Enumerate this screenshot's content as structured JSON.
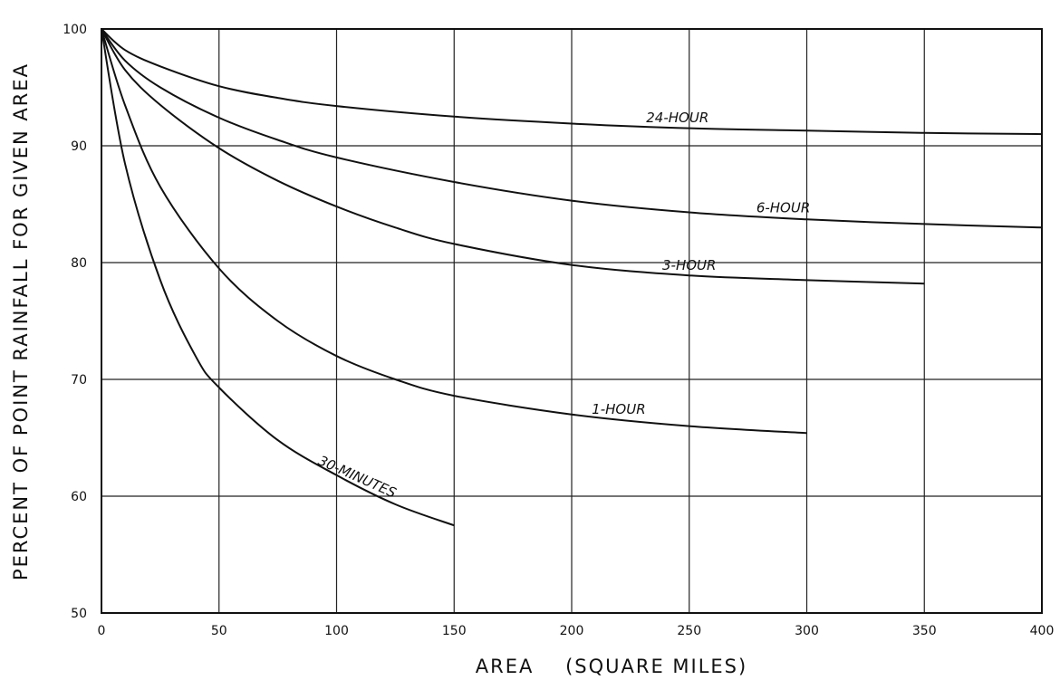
{
  "chart_data": {
    "type": "line",
    "title": "",
    "xlabel": "AREA    (SQUARE MILES)",
    "ylabel": "PERCENT OF POINT RAINFALL FOR GIVEN AREA",
    "xlim": [
      0,
      400
    ],
    "ylim": [
      50,
      100
    ],
    "x_ticks": [
      "0",
      "50",
      "100",
      "150",
      "200",
      "250",
      "300",
      "350",
      "400"
    ],
    "y_ticks": [
      "50",
      "60",
      "70",
      "80",
      "90",
      "100"
    ],
    "grid": true,
    "legend": "none",
    "series": [
      {
        "name": "24-HOUR",
        "x": [
          0,
          10,
          25,
          50,
          75,
          100,
          150,
          200,
          250,
          300,
          350,
          400
        ],
        "y": [
          100,
          98.2,
          96.8,
          95.1,
          94.1,
          93.4,
          92.5,
          91.9,
          91.5,
          91.3,
          91.1,
          91.0
        ]
      },
      {
        "name": "6-HOUR",
        "x": [
          0,
          10,
          25,
          50,
          75,
          100,
          150,
          200,
          250,
          300,
          350,
          400
        ],
        "y": [
          100,
          97.3,
          95.0,
          92.4,
          90.5,
          89.0,
          86.9,
          85.3,
          84.3,
          83.7,
          83.3,
          83.0
        ]
      },
      {
        "name": "3-HOUR",
        "x": [
          0,
          10,
          25,
          50,
          75,
          100,
          125,
          150,
          200,
          250,
          300,
          350
        ],
        "y": [
          100,
          96.5,
          93.5,
          89.8,
          87.0,
          84.8,
          83.0,
          81.6,
          79.8,
          78.9,
          78.5,
          78.2
        ]
      },
      {
        "name": "1-HOUR",
        "x": [
          0,
          10,
          25,
          50,
          75,
          100,
          125,
          150,
          200,
          250,
          300
        ],
        "y": [
          100,
          93.5,
          86.5,
          79.5,
          75.0,
          72.0,
          70.0,
          68.6,
          67.0,
          66.0,
          65.4
        ]
      },
      {
        "name": "30-MINUTES",
        "x": [
          0,
          10,
          25,
          40,
          50,
          75,
          100,
          125,
          150
        ],
        "y": [
          100,
          88.5,
          78.5,
          72.0,
          69.3,
          64.8,
          61.8,
          59.3,
          57.5
        ]
      }
    ]
  }
}
